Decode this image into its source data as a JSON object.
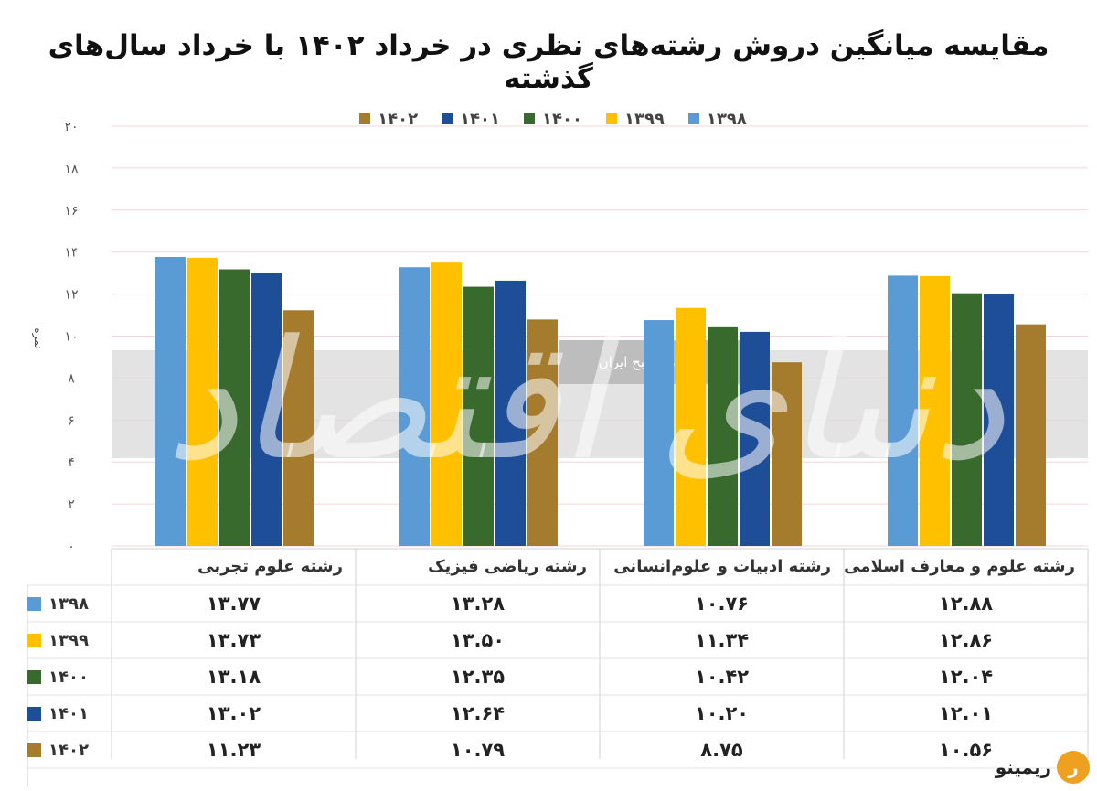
{
  "title": "مقایسه میانگین دروش رشته‌های نظری در خرداد ۱۴۰۲ با خرداد سال‌های گذشته",
  "watermark": {
    "badge_text": "روزنامه صبح ایران",
    "logo_text": "دنیای اقتصاد"
  },
  "brand": {
    "text": "ریمینو",
    "mark": "ر"
  },
  "colors": {
    "1398": "#5b9bd5",
    "1399": "#ffc000",
    "1400": "#38692d",
    "1401": "#1f4e99",
    "1402": "#a57b2e"
  },
  "chart_data": {
    "type": "bar",
    "ylabel": "نمره",
    "ylim": [
      0,
      20
    ],
    "yticks": [
      "۰",
      "۲",
      "۴",
      "۶",
      "۸",
      "۱۰",
      "۱۲",
      "۱۴",
      "۱۶",
      "۱۸",
      "۲۰"
    ],
    "grid": true,
    "legend_position": "top",
    "categories": [
      "رشته علوم تجربی",
      "رشته ریاضی فیزیک",
      "رشته ادبیات و علوم‌انسانی",
      "رشته علوم و معارف اسلامی"
    ],
    "series": [
      {
        "name": "۱۳۹۸",
        "key": "1398",
        "values": [
          13.77,
          13.28,
          10.76,
          12.88
        ],
        "labels": [
          "۱۳.۷۷",
          "۱۳.۲۸",
          "۱۰.۷۶",
          "۱۲.۸۸"
        ]
      },
      {
        "name": "۱۳۹۹",
        "key": "1399",
        "values": [
          13.73,
          13.5,
          11.34,
          12.86
        ],
        "labels": [
          "۱۳.۷۳",
          "۱۳.۵۰",
          "۱۱.۳۴",
          "۱۲.۸۶"
        ]
      },
      {
        "name": "۱۴۰۰",
        "key": "1400",
        "values": [
          13.18,
          12.35,
          10.42,
          12.04
        ],
        "labels": [
          "۱۳.۱۸",
          "۱۲.۳۵",
          "۱۰.۴۲",
          "۱۲.۰۴"
        ]
      },
      {
        "name": "۱۴۰۱",
        "key": "1401",
        "values": [
          13.02,
          12.64,
          10.2,
          12.01
        ],
        "labels": [
          "۱۳.۰۲",
          "۱۲.۶۴",
          "۱۰.۲۰",
          "۱۲.۰۱"
        ]
      },
      {
        "name": "۱۴۰۲",
        "key": "1402",
        "values": [
          11.23,
          10.79,
          8.75,
          10.56
        ],
        "labels": [
          "۱۱.۲۳",
          "۱۰.۷۹",
          "۸.۷۵",
          "۱۰.۵۶"
        ]
      }
    ]
  }
}
